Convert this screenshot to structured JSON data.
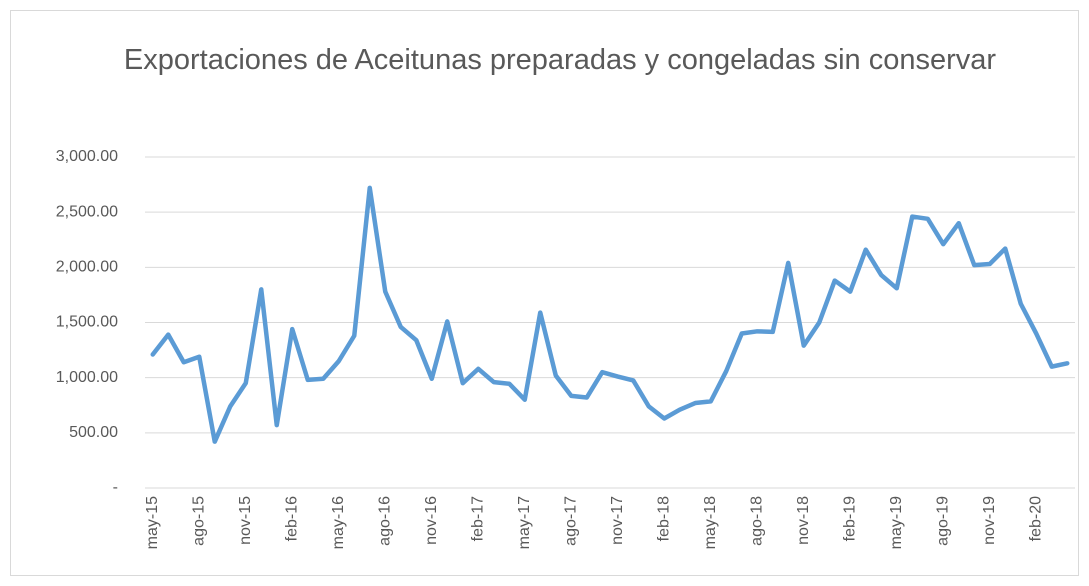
{
  "chart_data": {
    "type": "line",
    "title": "Exportaciones de Aceitunas preparadas y congeladas sin conservar",
    "categories": [
      "may-15",
      null,
      null,
      "ago-15",
      null,
      null,
      "nov-15",
      null,
      null,
      "feb-16",
      null,
      null,
      "may-16",
      null,
      null,
      "ago-16",
      null,
      null,
      "nov-16",
      null,
      null,
      "feb-17",
      null,
      null,
      "may-17",
      null,
      null,
      "ago-17",
      null,
      null,
      "nov-17",
      null,
      null,
      "feb-18",
      null,
      null,
      "may-18",
      null,
      null,
      "ago-18",
      null,
      null,
      "nov-18",
      null,
      null,
      "feb-19",
      null,
      null,
      "may-19",
      null,
      null,
      "ago-19",
      null,
      null,
      "nov-19",
      null,
      null,
      "feb-20",
      null,
      null
    ],
    "values": [
      1210,
      1390,
      1140,
      1190,
      420,
      740,
      950,
      1800,
      570,
      1440,
      980,
      990,
      1150,
      1380,
      2720,
      1780,
      1460,
      1340,
      990,
      1510,
      950,
      1080,
      960,
      945,
      800,
      1590,
      1020,
      835,
      820,
      1050,
      1010,
      975,
      740,
      630,
      710,
      770,
      785,
      1060,
      1400,
      1420,
      1415,
      2040,
      1290,
      1500,
      1880,
      1780,
      2160,
      1930,
      1810,
      2460,
      2440,
      2210,
      2400,
      2020,
      2030,
      2170,
      1670,
      1400,
      1100,
      1130
    ],
    "color": "#5b9bd5",
    "ylim": [
      0,
      3000
    ],
    "yticks": [
      {
        "value": 0,
        "label": "-"
      },
      {
        "value": 500,
        "label": "500.00"
      },
      {
        "value": 1000,
        "label": "1,000.00"
      },
      {
        "value": 1500,
        "label": "1,500.00"
      },
      {
        "value": 2000,
        "label": "2,000.00"
      },
      {
        "value": 2500,
        "label": "2,500.00"
      },
      {
        "value": 3000,
        "label": "3,000.00"
      }
    ],
    "grid": true
  }
}
